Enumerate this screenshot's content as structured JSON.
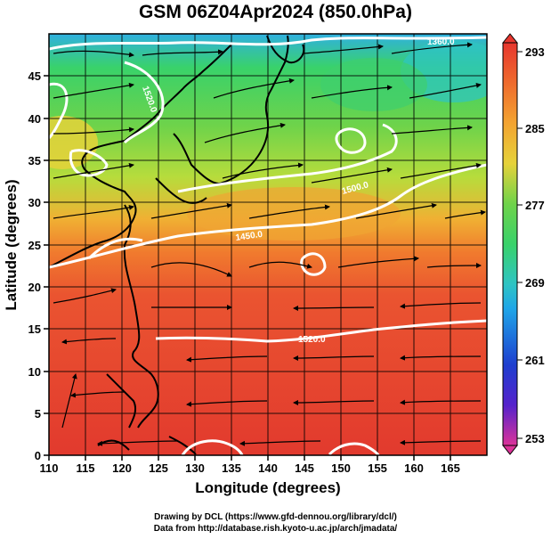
{
  "title": "GSM 06Z04Apr2024 (850.0hPa)",
  "axes": {
    "xlabel": "Longitude (degrees)",
    "ylabel": "Latitude  (degrees)",
    "x_ticks": [
      "110",
      "115",
      "120",
      "125",
      "130",
      "135",
      "140",
      "145",
      "150",
      "155",
      "160",
      "165"
    ],
    "y_ticks": [
      "0",
      "5",
      "10",
      "15",
      "20",
      "25",
      "30",
      "35",
      "40",
      "45"
    ],
    "x_range": [
      110,
      170
    ],
    "y_range": [
      0,
      50
    ]
  },
  "colorbar": {
    "labels": [
      "293",
      "285",
      "277",
      "269",
      "261",
      "253"
    ],
    "range": [
      253,
      293
    ],
    "colors": [
      "#dd3399",
      "#5522cc",
      "#1e3ecf",
      "#1fa6e8",
      "#2ec4c4",
      "#39d26a",
      "#6fd34a",
      "#b7dc3c",
      "#e6d23a",
      "#f3a431",
      "#ef6b2d",
      "#e7362e"
    ]
  },
  "contour_labels": [
    "1360.0",
    "1520.0",
    "1500.0",
    "1450.0",
    "1520.0"
  ],
  "credit": {
    "line1": "Drawing by DCL (https://www.gfd-dennou.org/library/dcl/)",
    "line2": "Data from http://database.rish.kyoto-u.ac.jp/arch/jmadata/"
  }
}
